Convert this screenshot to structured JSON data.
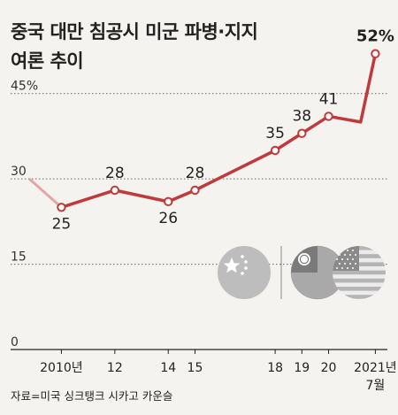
{
  "title_lines": [
    "중국 대만 침공시 미군 파병·지지",
    "여론 추이"
  ],
  "source": "자료=미국 싱크탱크 시카고 카운슬",
  "chart_data": {
    "type": "line",
    "title": "중국 대만 침공시 미군 파병·지지 여론 추이",
    "x": [
      2010,
      2012,
      2014,
      2015,
      2018,
      2019,
      2020,
      2021.2,
      2021.75
    ],
    "values": [
      25,
      28,
      26,
      28,
      35,
      38,
      41,
      40,
      52
    ],
    "point_labels": [
      "25",
      "28",
      "26",
      "28",
      "35",
      "38",
      "41",
      "",
      "52%"
    ],
    "markers": [
      true,
      true,
      true,
      true,
      true,
      true,
      true,
      false,
      true
    ],
    "lead_in_from": {
      "x": 2008.8,
      "y": 30
    },
    "x_tick_labels": [
      {
        "x": 2010,
        "label": "2010년"
      },
      {
        "x": 2012,
        "label": "12"
      },
      {
        "x": 2014,
        "label": "14"
      },
      {
        "x": 2015,
        "label": "15"
      },
      {
        "x": 2018,
        "label": "18"
      },
      {
        "x": 2019,
        "label": "19"
      },
      {
        "x": 2020,
        "label": "20"
      },
      {
        "x": 2021.75,
        "label": "2021년"
      }
    ],
    "x_sublabel": {
      "x": 2021.75,
      "label": "7월"
    },
    "y_ticks": [
      {
        "value": 0,
        "label": "0"
      },
      {
        "value": 15,
        "label": "15"
      },
      {
        "value": 30,
        "label": "30"
      },
      {
        "value": 45,
        "label": "45%"
      }
    ],
    "xlim": [
      2008.1,
      2022.2
    ],
    "ylim": [
      0,
      56
    ],
    "grid": "dotted horizontal",
    "line_color": "#c0393b",
    "lead_in_color": "#e8a5a5",
    "axis_color": "#222222",
    "grid_color": "#666666",
    "flags": [
      {
        "name": "china-flag-icon",
        "label": ""
      },
      {
        "name": "taiwan-flag-icon",
        "label": ""
      },
      {
        "name": "usa-flag-icon",
        "label": ""
      }
    ]
  }
}
